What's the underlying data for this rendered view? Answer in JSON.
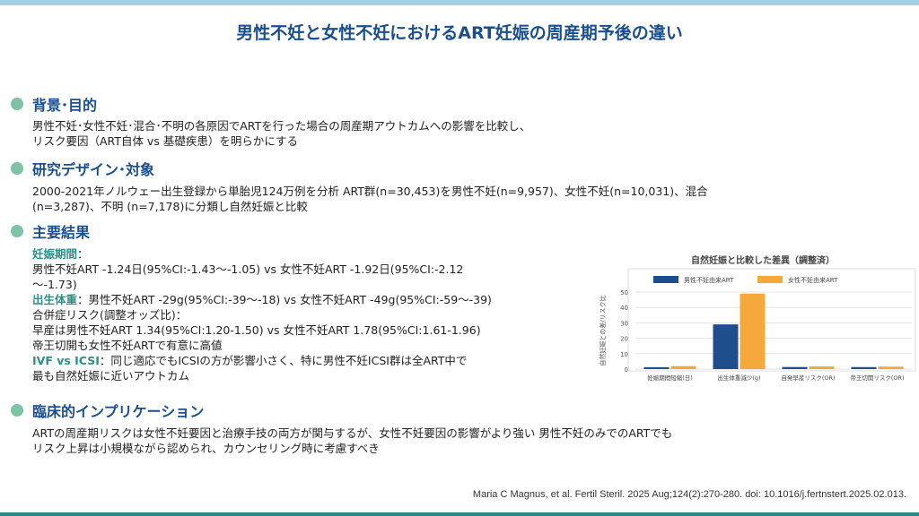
{
  "title": "男性不妊と女性不妊におけるART妊娠の周産期予後の違い",
  "sections": {
    "background": {
      "heading": "背景･目的",
      "line1": "男性不妊･女性不妊･混合･不明の各原因でARTを行った場合の周産期アウトカムへの影響を比較し、",
      "line2": "リスク要因（ART自体 vs 基礎疾患）を明らかにする"
    },
    "design": {
      "heading": "研究デザイン･対象",
      "line1": "2000-2021年ノルウェー出生登録から単胎児124万例を分析 ART群(n=30,453)を男性不妊(n=9,957)、女性不妊(n=10,031)、混合",
      "line2": "(n=3,287)、不明 (n=7,178)に分類し自然妊娠と比較"
    },
    "results": {
      "heading": "主要結果",
      "gestation_label": "妊娠期間",
      "gestation_colon": "：",
      "gestation_line1": "男性不妊ART -1.24日(95%CI:-1.43〜-1.05) vs 女性不妊ART -1.92日(95%CI:-2.12",
      "gestation_line2": "〜-1.73)",
      "birthweight_label": "出生体重",
      "birthweight_text": "：男性不妊ART -29g(95%CI:-39〜-18) vs 女性不妊ART -49g(95%CI:-59〜-39)",
      "complication_line": "合併症リスク(調整オッズ比)：",
      "preterm_line": "早産は男性不妊ART 1.34(95%CI:1.20-1.50) vs 女性不妊ART 1.78(95%CI:1.61-1.96)",
      "cesarean_line": "帝王切開も女性不妊ARTで有意に高値",
      "ivf_label": "IVF vs ICSI",
      "ivf_text": "：同じ適応でもICSIの方が影響小さく、特に男性不妊ICSI群は全ART中で",
      "ivf_line2": "最も自然妊娠に近いアウトカム"
    },
    "implication": {
      "heading": "臨床的インプリケーション",
      "line1": "ARTの周産期リスクは女性不妊要因と治療手技の両方が関与するが、女性不妊要因の影響がより強い 男性不妊のみでのARTでも",
      "line2": "リスク上昇は小規模ながら認められ、カウンセリング時に考慮すべき"
    }
  },
  "footer": "Maria C Magnus, et al. Fertil Steril. 2025 Aug;124(2):270-280. doi: 10.1016/j.fertnstert.2025.02.013.",
  "colors": {
    "title": "#1a4f8f",
    "accent": "#2c8f86",
    "series_male": "#1f4e8c",
    "series_female": "#f4a93a"
  },
  "chart_data": {
    "type": "bar",
    "title": "自然妊娠と比較した差異（調整済）",
    "ylabel": "自然妊娠との差/リスク比",
    "categories": [
      "妊娠期間短縮(日)",
      "出生体重減少(g)",
      "自発早産リスク(OR)",
      "帝王切開リスク(OR)"
    ],
    "series": [
      {
        "name": "男性不妊由来ART",
        "values": [
          1.24,
          29,
          1.34,
          1.3
        ]
      },
      {
        "name": "女性不妊由来ART",
        "values": [
          1.92,
          49,
          1.78,
          1.6
        ]
      }
    ],
    "ylim": [
      0,
      50
    ],
    "yticks": [
      0,
      10,
      20,
      30,
      40,
      50
    ],
    "legend": "top",
    "grid": true
  }
}
